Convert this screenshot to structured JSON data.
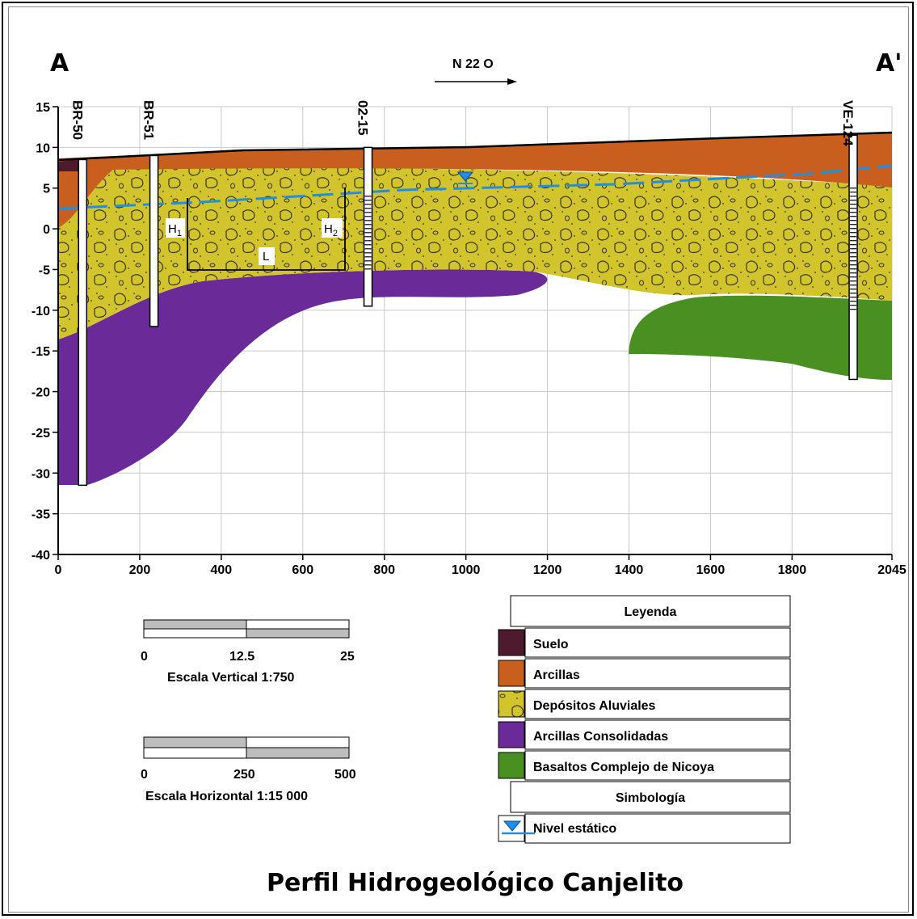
{
  "corners": {
    "left": "A",
    "right": "A'"
  },
  "direction": "N 22 O",
  "axes": {
    "x_ticks": [
      "0",
      "200",
      "400",
      "600",
      "800",
      "1000",
      "1200",
      "1400",
      "1600",
      "1800",
      "2045"
    ],
    "y_ticks": [
      "15",
      "10",
      "5",
      "0",
      "-5",
      "-10",
      "-15",
      "-20",
      "-25",
      "-30",
      "-35",
      "-40"
    ]
  },
  "wells": [
    {
      "name": "BR-50",
      "x": 60,
      "top": 8.5,
      "bottom": -31.5
    },
    {
      "name": "BR-51",
      "x": 235,
      "top": 9,
      "bottom": -12
    },
    {
      "name": "02-15",
      "x": 760,
      "top": 10,
      "bottom": -9.5
    },
    {
      "name": "VE-124",
      "x": 1950,
      "top": 11.5,
      "bottom": -18.5
    }
  ],
  "annotations": {
    "h1": "H",
    "h1_sub": "1",
    "h2": "H",
    "h2_sub": "2",
    "l": "L"
  },
  "scales": {
    "vertical": {
      "ticks": [
        "0",
        "12.5",
        "25"
      ],
      "label": "Escala Vertical 1:750"
    },
    "horizontal": {
      "ticks": [
        "0",
        "250",
        "500"
      ],
      "label": "Escala Horizontal 1:15 000"
    }
  },
  "legend": {
    "title": "Leyenda",
    "items": [
      {
        "label": "Suelo",
        "color": "#4e1a2e"
      },
      {
        "label": "Arcillas",
        "color": "#c85f1e"
      },
      {
        "label": "Depósitos Aluviales",
        "color": "#d2c42c"
      },
      {
        "label": "Arcillas Consolidadas",
        "color": "#6a2a98"
      },
      {
        "label": "Basaltos Complejo de Nicoya",
        "color": "#4a8f22"
      }
    ],
    "symbology_title": "Simbología",
    "symbols": [
      {
        "label": "Nivel estático",
        "color": "#1e8ee6"
      }
    ]
  },
  "title": "Perfil Hidrogeológico Canjelito"
}
